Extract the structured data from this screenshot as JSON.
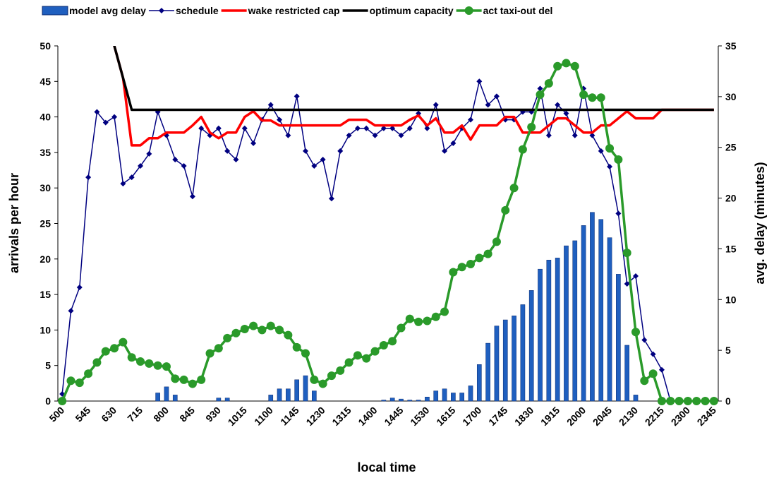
{
  "chart_data": {
    "type": "combo",
    "categories": [
      "500",
      null,
      null,
      "545",
      null,
      null,
      "630",
      null,
      null,
      "715",
      null,
      null,
      "800",
      null,
      null,
      "845",
      null,
      null,
      "930",
      null,
      null,
      "1015",
      null,
      null,
      "1100",
      null,
      null,
      "1145",
      null,
      null,
      "1230",
      null,
      null,
      "1315",
      null,
      null,
      "1400",
      null,
      null,
      "1445",
      null,
      null,
      "1530",
      null,
      null,
      "1615",
      null,
      null,
      "1700",
      null,
      null,
      "1745",
      null,
      null,
      "1830",
      null,
      null,
      "1915",
      null,
      null,
      "2000",
      null,
      null,
      "2045",
      null,
      null,
      "2130",
      null,
      null,
      "2215",
      null,
      null,
      "2300",
      null,
      null,
      "2345"
    ],
    "series": [
      {
        "name": "model avg delay",
        "type": "bar",
        "axis": "y2",
        "color": "#1f5fbf",
        "values": [
          0,
          0,
          0,
          0,
          0,
          0,
          0,
          0,
          0,
          0,
          0,
          0.8,
          1.4,
          0.6,
          0,
          0,
          0,
          0,
          0.3,
          0.3,
          0,
          0,
          0,
          0,
          0.6,
          1.2,
          1.2,
          2.1,
          2.5,
          1.0,
          0,
          0,
          0,
          0,
          0,
          0,
          0,
          0.1,
          0.3,
          0.2,
          0.1,
          0.1,
          0.4,
          1.0,
          1.2,
          0.8,
          0.8,
          1.5,
          3.6,
          5.7,
          7.4,
          8.0,
          8.4,
          9.5,
          10.9,
          13.0,
          13.9,
          14.1,
          15.3,
          15.8,
          17.3,
          18.6,
          17.9,
          16.1,
          12.5,
          5.5,
          0.6,
          0,
          0,
          0,
          0,
          0,
          0,
          0,
          0,
          0
        ]
      },
      {
        "name": "schedule",
        "type": "line",
        "marker": "diamond",
        "color": "#000080",
        "values": [
          1,
          12.7,
          16,
          31.5,
          40.7,
          39.2,
          40,
          30.6,
          31.5,
          33.1,
          34.8,
          40.7,
          37.4,
          34,
          33.1,
          28.8,
          38.4,
          37.4,
          38.4,
          35.2,
          34,
          38.4,
          36.3,
          39.6,
          41.7,
          39.6,
          37.4,
          42.9,
          35.2,
          33.1,
          34,
          28.5,
          35.2,
          37.4,
          38.4,
          38.4,
          37.4,
          38.4,
          38.4,
          37.4,
          38.4,
          40.5,
          38.4,
          41.7,
          35.2,
          36.3,
          38.4,
          39.6,
          45,
          41.7,
          42.9,
          39.6,
          39.6,
          40.7,
          40.7,
          44,
          37.4,
          41.7,
          40.5,
          37.4,
          44,
          37.4,
          35.2,
          33,
          26.4,
          16.5,
          17.6,
          8.6,
          6.6,
          4.4,
          0,
          null,
          null,
          null,
          null,
          null
        ]
      },
      {
        "name": "wake restricted cap",
        "type": "line",
        "color": "#ff0000",
        "values": [
          null,
          null,
          null,
          null,
          null,
          56,
          50,
          45.5,
          36,
          36,
          37,
          37,
          37.8,
          37.8,
          37.8,
          38.8,
          40,
          37.8,
          37,
          37.8,
          37.8,
          40,
          40.8,
          39.5,
          39.5,
          38.8,
          38.8,
          38.8,
          38.8,
          38.8,
          38.8,
          38.8,
          38.8,
          39.6,
          39.6,
          39.6,
          38.8,
          38.8,
          38.8,
          38.8,
          39.6,
          40.2,
          38.8,
          39.8,
          37.8,
          37.8,
          38.8,
          36.8,
          38.8,
          38.8,
          38.8,
          40,
          40,
          37.8,
          37.8,
          37.8,
          38.8,
          39.8,
          39.8,
          38.8,
          37.8,
          37.8,
          38.8,
          38.8,
          39.8,
          40.8,
          39.8,
          39.8,
          39.8,
          41,
          41,
          41,
          41,
          41,
          41,
          41
        ]
      },
      {
        "name": "optimum capacity",
        "type": "line",
        "color": "#000000",
        "values": [
          null,
          null,
          null,
          null,
          null,
          56,
          50,
          45.5,
          41,
          41,
          41,
          41,
          41,
          41,
          41,
          41,
          41,
          41,
          41,
          41,
          41,
          41,
          41,
          41,
          41,
          41,
          41,
          41,
          41,
          41,
          41,
          41,
          41,
          41,
          41,
          41,
          41,
          41,
          41,
          41,
          41,
          41,
          41,
          41,
          41,
          41,
          41,
          41,
          41,
          41,
          41,
          41,
          41,
          41,
          41,
          41,
          41,
          41,
          41,
          41,
          41,
          41,
          41,
          41,
          41,
          41,
          41,
          41,
          41,
          41,
          41,
          41,
          41,
          41,
          41,
          41
        ]
      },
      {
        "name": "act taxi-out del",
        "type": "line",
        "marker": "circle",
        "axis": "y2",
        "color": "#2a9a2a",
        "values": [
          0,
          2,
          1.8,
          2.7,
          3.8,
          4.9,
          5.2,
          5.8,
          4.3,
          3.9,
          3.7,
          3.5,
          3.4,
          2.2,
          2.1,
          1.7,
          2.1,
          4.7,
          5.2,
          6.2,
          6.7,
          7.1,
          7.4,
          7.0,
          7.4,
          7.0,
          6.5,
          5.3,
          4.7,
          2.1,
          1.7,
          2.5,
          3,
          3.8,
          4.5,
          4.2,
          4.9,
          5.5,
          5.9,
          7.2,
          8.1,
          7.8,
          7.9,
          8.3,
          8.8,
          12.7,
          13.2,
          13.5,
          14.1,
          14.5,
          15.7,
          18.8,
          21,
          24.8,
          27,
          30.2,
          31.3,
          33,
          33.3,
          33,
          30.2,
          29.9,
          29.9,
          24.9,
          23.8,
          14.6,
          6.8,
          2,
          2.7,
          0,
          0,
          0,
          0,
          0,
          0,
          0
        ]
      }
    ],
    "xlabel": "local time",
    "ylabel": "arrivals per hour",
    "y2label": "avg. delay (minutes)",
    "ylim": [
      0,
      50
    ],
    "yticks": [
      0,
      5,
      10,
      15,
      20,
      25,
      30,
      35,
      40,
      45,
      50
    ],
    "y2lim": [
      0,
      35
    ],
    "y2ticks": [
      0,
      5,
      10,
      15,
      20,
      25,
      30,
      35
    ],
    "legend": "top"
  }
}
